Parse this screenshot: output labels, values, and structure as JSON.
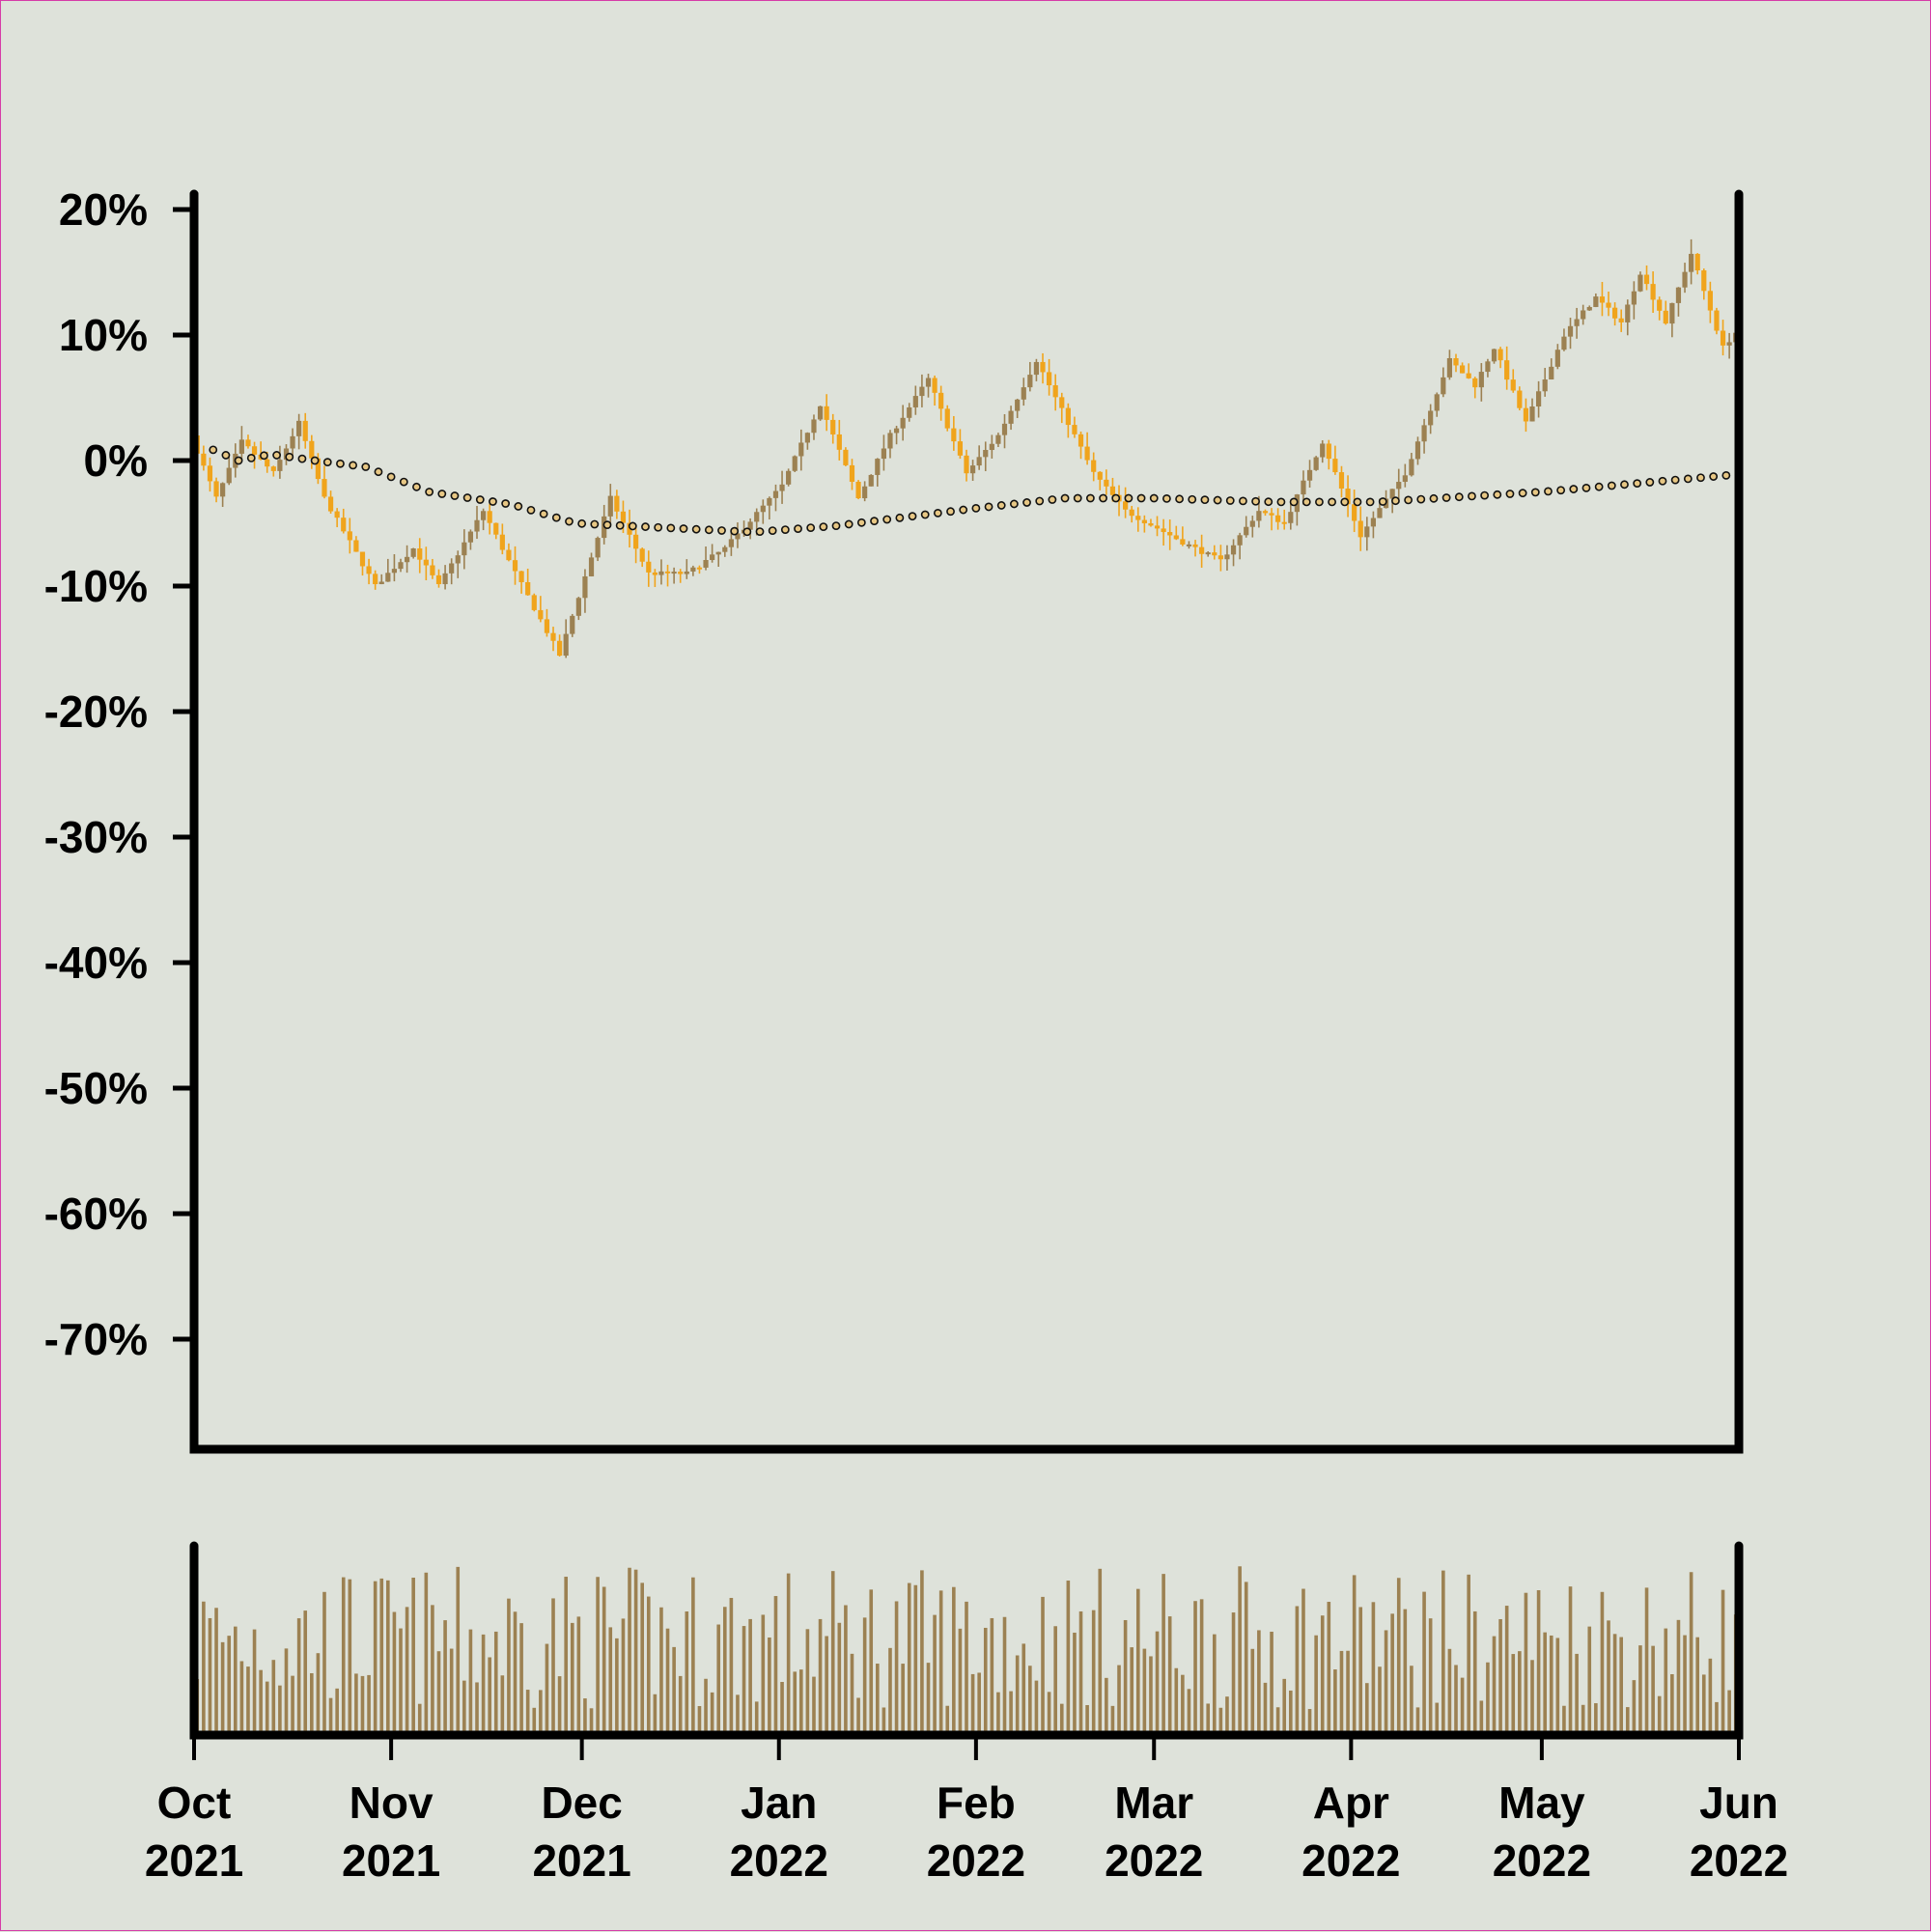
{
  "chart_data": {
    "type": "candlestick",
    "x_range": [
      "2021-10-01",
      "2022-06-01"
    ],
    "y_range": [
      -0.78,
      0.21
    ],
    "y_ticks": [
      {
        "value": 0.2,
        "label": "20%"
      },
      {
        "value": 0.1,
        "label": "10%"
      },
      {
        "value": 0.0,
        "label": "0%"
      },
      {
        "value": -0.1,
        "label": "-10%"
      },
      {
        "value": -0.2,
        "label": "-20%"
      },
      {
        "value": -0.3,
        "label": "-30%"
      },
      {
        "value": -0.4,
        "label": "-40%"
      },
      {
        "value": -0.5,
        "label": "-50%"
      },
      {
        "value": -0.6,
        "label": "-60%"
      },
      {
        "value": -0.7,
        "label": "-70%"
      }
    ],
    "x_ticks": [
      {
        "date": "2021-10-01",
        "month": "Oct",
        "year": "2021"
      },
      {
        "date": "2021-11-01",
        "month": "Nov",
        "year": "2021"
      },
      {
        "date": "2021-12-01",
        "month": "Dec",
        "year": "2021"
      },
      {
        "date": "2022-01-01",
        "month": "Jan",
        "year": "2022"
      },
      {
        "date": "2022-02-01",
        "month": "Feb",
        "year": "2022"
      },
      {
        "date": "2022-03-01",
        "month": "Mar",
        "year": "2022"
      },
      {
        "date": "2022-04-01",
        "month": "Apr",
        "year": "2022"
      },
      {
        "date": "2022-05-01",
        "month": "May",
        "year": "2022"
      },
      {
        "date": "2022-06-01",
        "month": "Jun",
        "year": "2022"
      }
    ],
    "price_anchors": [
      {
        "date": "2021-10-01",
        "value": 0.02
      },
      {
        "date": "2021-10-05",
        "value": -0.03
      },
      {
        "date": "2021-10-09",
        "value": 0.015
      },
      {
        "date": "2021-10-14",
        "value": -0.01
      },
      {
        "date": "2021-10-18",
        "value": 0.03
      },
      {
        "date": "2021-10-22",
        "value": -0.03
      },
      {
        "date": "2021-10-30",
        "value": -0.1
      },
      {
        "date": "2021-11-05",
        "value": -0.07
      },
      {
        "date": "2021-11-09",
        "value": -0.1
      },
      {
        "date": "2021-11-16",
        "value": -0.04
      },
      {
        "date": "2021-11-20",
        "value": -0.08
      },
      {
        "date": "2021-11-28",
        "value": -0.155
      },
      {
        "date": "2021-12-06",
        "value": -0.03
      },
      {
        "date": "2021-12-12",
        "value": -0.09
      },
      {
        "date": "2021-12-18",
        "value": -0.09
      },
      {
        "date": "2021-12-24",
        "value": -0.07
      },
      {
        "date": "2022-01-02",
        "value": -0.02
      },
      {
        "date": "2022-01-08",
        "value": 0.045
      },
      {
        "date": "2022-01-14",
        "value": -0.03
      },
      {
        "date": "2022-01-19",
        "value": 0.02
      },
      {
        "date": "2022-01-25",
        "value": 0.065
      },
      {
        "date": "2022-01-31",
        "value": -0.01
      },
      {
        "date": "2022-02-05",
        "value": 0.02
      },
      {
        "date": "2022-02-11",
        "value": 0.08
      },
      {
        "date": "2022-02-20",
        "value": -0.01
      },
      {
        "date": "2022-02-25",
        "value": -0.04
      },
      {
        "date": "2022-03-06",
        "value": -0.065
      },
      {
        "date": "2022-03-12",
        "value": -0.08
      },
      {
        "date": "2022-03-18",
        "value": -0.04
      },
      {
        "date": "2022-03-22",
        "value": -0.05
      },
      {
        "date": "2022-03-28",
        "value": 0.015
      },
      {
        "date": "2022-04-03",
        "value": -0.06
      },
      {
        "date": "2022-04-10",
        "value": -0.01
      },
      {
        "date": "2022-04-17",
        "value": 0.08
      },
      {
        "date": "2022-04-21",
        "value": 0.06
      },
      {
        "date": "2022-04-24",
        "value": 0.09
      },
      {
        "date": "2022-04-29",
        "value": 0.03
      },
      {
        "date": "2022-05-05",
        "value": 0.1
      },
      {
        "date": "2022-05-10",
        "value": 0.13
      },
      {
        "date": "2022-05-14",
        "value": 0.11
      },
      {
        "date": "2022-05-17",
        "value": 0.15
      },
      {
        "date": "2022-05-21",
        "value": 0.11
      },
      {
        "date": "2022-05-25",
        "value": 0.165
      },
      {
        "date": "2022-05-30",
        "value": 0.09
      },
      {
        "date": "2022-06-04",
        "value": 0.12
      },
      {
        "date": "2022-06-09",
        "value": 0.09
      },
      {
        "date": "2022-06-14",
        "value": 0.13
      }
    ],
    "moving_average": [
      {
        "date": "2021-10-01",
        "value": 0.015
      },
      {
        "date": "2021-10-08",
        "value": 0.0
      },
      {
        "date": "2021-10-13",
        "value": 0.005
      },
      {
        "date": "2021-10-20",
        "value": 0.0
      },
      {
        "date": "2021-10-28",
        "value": -0.005
      },
      {
        "date": "2021-11-07",
        "value": -0.025
      },
      {
        "date": "2021-11-20",
        "value": -0.035
      },
      {
        "date": "2021-11-30",
        "value": -0.05
      },
      {
        "date": "2021-12-08",
        "value": -0.052
      },
      {
        "date": "2021-12-28",
        "value": -0.057
      },
      {
        "date": "2022-01-10",
        "value": -0.052
      },
      {
        "date": "2022-02-01",
        "value": -0.038
      },
      {
        "date": "2022-02-15",
        "value": -0.03
      },
      {
        "date": "2022-03-01",
        "value": -0.03
      },
      {
        "date": "2022-03-20",
        "value": -0.033
      },
      {
        "date": "2022-04-05",
        "value": -0.033
      },
      {
        "date": "2022-05-01",
        "value": -0.025
      },
      {
        "date": "2022-06-14",
        "value": -0.005
      }
    ],
    "volume_relative_max": 1.0
  }
}
